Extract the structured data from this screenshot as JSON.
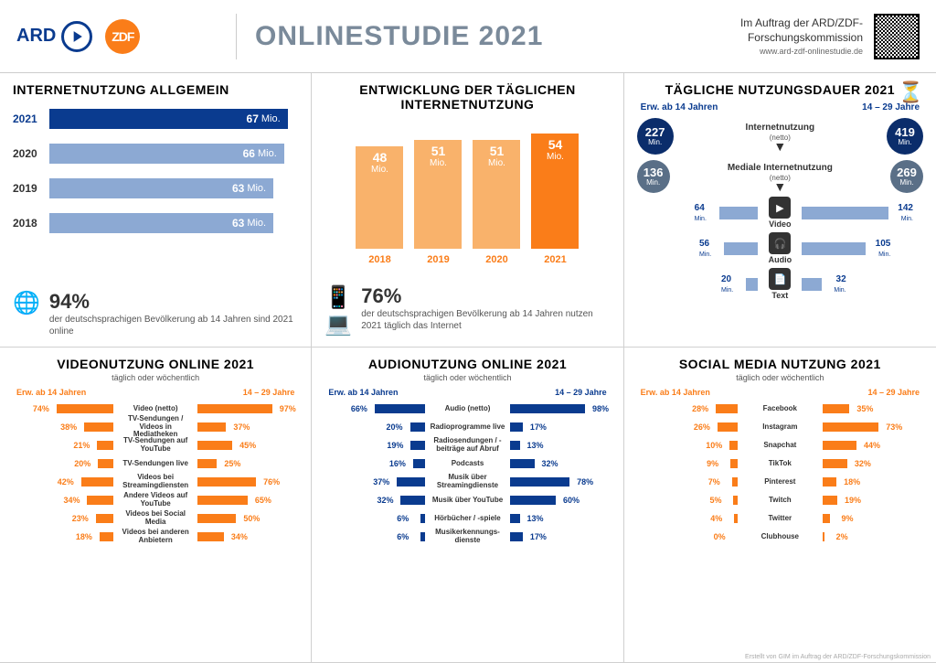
{
  "colors": {
    "navy": "#0a3b8f",
    "navy_dark": "#0b2d6b",
    "blue_pale": "#8ca9d3",
    "blue_grey": "#7b95b8",
    "orange": "#fa7d19",
    "orange_pale": "#f9b26b",
    "grey_text": "#7a8a9a",
    "bg": "#ffffff"
  },
  "header": {
    "ard_label": "ARD",
    "zdf_label": "ZDF",
    "title": "ONLINESTUDIE 2021",
    "commission_line1": "Im Auftrag der ARD/ZDF-",
    "commission_line2": "Forschungskommission",
    "url": "www.ard-zdf-onlinestudie.de"
  },
  "panel1": {
    "title": "INTERNETNUTZUNG ALLGEMEIN",
    "type": "bar-horizontal",
    "max": 70,
    "unit": "Mio.",
    "bars": [
      {
        "year": "2021",
        "value": 67,
        "color": "#0a3b8f",
        "bold": true
      },
      {
        "year": "2020",
        "value": 66,
        "color": "#8ca9d3"
      },
      {
        "year": "2019",
        "value": 63,
        "color": "#8ca9d3"
      },
      {
        "year": "2018",
        "value": 63,
        "color": "#8ca9d3"
      }
    ],
    "summary_pct": "94%",
    "summary_text": "der deutschsprachigen Bevölkerung ab 14 Jahren sind 2021 online"
  },
  "panel2": {
    "title": "ENTWICKLUNG DER TÄGLICHEN INTERNETNUTZUNG",
    "type": "bar-vertical",
    "max": 60,
    "unit": "Mio.",
    "bars": [
      {
        "year": "2018",
        "value": 48,
        "color": "#f9b26b",
        "label_color": "#fa7d19"
      },
      {
        "year": "2019",
        "value": 51,
        "color": "#f9b26b",
        "label_color": "#fa7d19"
      },
      {
        "year": "2020",
        "value": 51,
        "color": "#f9b26b",
        "label_color": "#fa7d19"
      },
      {
        "year": "2021",
        "value": 54,
        "color": "#fa7d19",
        "label_color": "#fa7d19",
        "bold": true
      }
    ],
    "summary_pct": "76%",
    "summary_text": "der deutschsprachigen Bevölkerung ab 14 Jahren nutzen 2021 täglich das Internet"
  },
  "panel3": {
    "title": "TÄGLICHE NUTZUNGSDAUER 2021",
    "left_group": "Erw. ab 14 Jahren",
    "right_group": "14 – 29 Jahre",
    "unit": "Min.",
    "circle_rows": [
      {
        "left_val": 227,
        "right_val": 419,
        "label": "Internetnutzung",
        "sub": "(netto)",
        "color": "#0b2d6b"
      },
      {
        "left_val": 136,
        "right_val": 269,
        "label": "Mediale Internetnutzung",
        "sub": "(netto)",
        "color": "#5a6f87"
      }
    ],
    "bar_rows": [
      {
        "left_val": 64,
        "right_val": 142,
        "label": "Video",
        "icon": "▶",
        "max": 150
      },
      {
        "left_val": 56,
        "right_val": 105,
        "label": "Audio",
        "icon": "🎧",
        "max": 150
      },
      {
        "left_val": 20,
        "right_val": 32,
        "label": "Text",
        "icon": "📄",
        "max": 150
      }
    ],
    "bar_color": "#8ca9d3"
  },
  "panel4": {
    "title": "VIDEONUTZUNG ONLINE 2021",
    "subtitle": "täglich oder wöchentlich",
    "left_group": "Erw. ab 14 Jahren",
    "right_group": "14 – 29 Jahre",
    "color": "#fa7d19",
    "max": 100,
    "rows": [
      {
        "l": 74,
        "r": 97,
        "label": "Video (netto)"
      },
      {
        "l": 38,
        "r": 37,
        "label": "TV-Sendungen / Videos in Mediatheken"
      },
      {
        "l": 21,
        "r": 45,
        "label": "TV-Sendungen auf YouTube"
      },
      {
        "l": 20,
        "r": 25,
        "label": "TV-Sendungen live"
      },
      {
        "l": 42,
        "r": 76,
        "label": "Videos bei Streamingdiensten"
      },
      {
        "l": 34,
        "r": 65,
        "label": "Andere Videos auf YouTube"
      },
      {
        "l": 23,
        "r": 50,
        "label": "Videos bei Social Media"
      },
      {
        "l": 18,
        "r": 34,
        "label": "Videos bei anderen Anbietern"
      }
    ]
  },
  "panel5": {
    "title": "AUDIONUTZUNG ONLINE 2021",
    "subtitle": "täglich oder wöchentlich",
    "left_group": "Erw. ab 14 Jahren",
    "right_group": "14 – 29 Jahre",
    "color": "#0a3b8f",
    "max": 100,
    "rows": [
      {
        "l": 66,
        "r": 98,
        "label": "Audio (netto)"
      },
      {
        "l": 20,
        "r": 17,
        "label": "Radioprogramme live"
      },
      {
        "l": 19,
        "r": 13,
        "label": "Radiosendungen / -beiträge auf Abruf"
      },
      {
        "l": 16,
        "r": 32,
        "label": "Podcasts"
      },
      {
        "l": 37,
        "r": 78,
        "label": "Musik über Streamingdienste"
      },
      {
        "l": 32,
        "r": 60,
        "label": "Musik über YouTube"
      },
      {
        "l": 6,
        "r": 13,
        "label": "Hörbücher / -spiele"
      },
      {
        "l": 6,
        "r": 17,
        "label": "Musikerkennungs-dienste"
      }
    ]
  },
  "panel6": {
    "title": "SOCIAL MEDIA NUTZUNG 2021",
    "subtitle": "täglich oder wöchentlich",
    "left_group": "Erw. ab 14 Jahren",
    "right_group": "14 – 29 Jahre",
    "color": "#fa7d19",
    "max": 100,
    "rows": [
      {
        "l": 28,
        "r": 35,
        "label": "Facebook"
      },
      {
        "l": 26,
        "r": 73,
        "label": "Instagram"
      },
      {
        "l": 10,
        "r": 44,
        "label": "Snapchat"
      },
      {
        "l": 9,
        "r": 32,
        "label": "TikTok"
      },
      {
        "l": 7,
        "r": 18,
        "label": "Pinterest"
      },
      {
        "l": 5,
        "r": 19,
        "label": "Twitch"
      },
      {
        "l": 4,
        "r": 9,
        "label": "Twitter"
      },
      {
        "l": 0,
        "r": 2,
        "label": "Clubhouse"
      }
    ]
  },
  "footnote": "Erstellt von GIM im Auftrag der ARD/ZDF-Forschungskommission"
}
